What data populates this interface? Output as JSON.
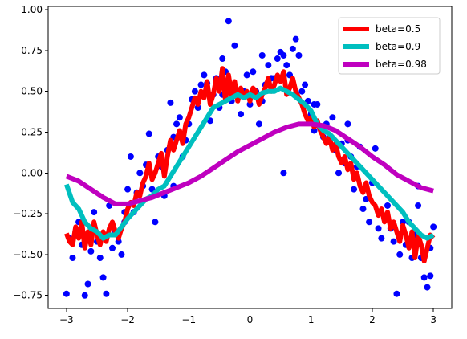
{
  "chart_data": {
    "type": "line",
    "title": "",
    "xlabel": "",
    "ylabel": "",
    "xlim": [
      -3.3,
      3.3
    ],
    "ylim": [
      -0.83,
      1.02
    ],
    "grid": false,
    "legend_position": "top-right",
    "x_ticks": [
      -3,
      -2,
      -1,
      0,
      1,
      2,
      3
    ],
    "y_ticks": [
      -0.75,
      -0.5,
      -0.25,
      0.0,
      0.25,
      0.5,
      0.75,
      1.0
    ],
    "x_tick_labels": [
      "−3",
      "−2",
      "−1",
      "0",
      "1",
      "2",
      "3"
    ],
    "y_tick_labels": [
      "−0.75",
      "−0.50",
      "−0.25",
      "0.00",
      "0.25",
      "0.50",
      "0.75",
      "1.00"
    ],
    "scatter": {
      "color": "#0000ff",
      "points": [
        [
          -3.0,
          -0.74
        ],
        [
          -2.95,
          -0.4
        ],
        [
          -2.9,
          -0.52
        ],
        [
          -2.85,
          -0.36
        ],
        [
          -2.8,
          -0.3
        ],
        [
          -2.75,
          -0.44
        ],
        [
          -2.7,
          -0.75
        ],
        [
          -2.65,
          -0.68
        ],
        [
          -2.6,
          -0.48
        ],
        [
          -2.55,
          -0.24
        ],
        [
          -2.5,
          -0.42
        ],
        [
          -2.45,
          -0.52
        ],
        [
          -2.4,
          -0.64
        ],
        [
          -2.35,
          -0.74
        ],
        [
          -2.3,
          -0.2
        ],
        [
          -2.25,
          -0.46
        ],
        [
          -2.2,
          -0.36
        ],
        [
          -2.15,
          -0.42
        ],
        [
          -2.1,
          -0.5
        ],
        [
          -2.05,
          -0.3
        ],
        [
          -2.0,
          -0.1
        ],
        [
          -1.95,
          0.1
        ],
        [
          -1.9,
          -0.24
        ],
        [
          -1.85,
          -0.12
        ],
        [
          -1.8,
          0.0
        ],
        [
          -1.75,
          -0.08
        ],
        [
          -1.7,
          0.05
        ],
        [
          -1.65,
          0.24
        ],
        [
          -1.6,
          -0.1
        ],
        [
          -1.55,
          -0.3
        ],
        [
          -1.5,
          0.1
        ],
        [
          -1.45,
          0.04
        ],
        [
          -1.4,
          -0.14
        ],
        [
          -1.35,
          0.14
        ],
        [
          -1.3,
          0.43
        ],
        [
          -1.25,
          -0.08
        ],
        [
          -1.2,
          0.3
        ],
        [
          -1.15,
          0.34
        ],
        [
          -1.1,
          0.1
        ],
        [
          -1.05,
          0.2
        ],
        [
          -1.0,
          0.3
        ],
        [
          -0.95,
          0.45
        ],
        [
          -0.9,
          0.5
        ],
        [
          -0.85,
          0.4
        ],
        [
          -0.8,
          0.54
        ],
        [
          -0.75,
          0.6
        ],
        [
          -0.7,
          0.55
        ],
        [
          -0.65,
          0.32
        ],
        [
          -0.6,
          0.48
        ],
        [
          -0.55,
          0.58
        ],
        [
          -0.5,
          0.4
        ],
        [
          -0.45,
          0.7
        ],
        [
          -0.4,
          0.62
        ],
        [
          -0.35,
          0.93
        ],
        [
          -0.3,
          0.44
        ],
        [
          -0.25,
          0.78
        ],
        [
          -0.2,
          0.5
        ],
        [
          -0.15,
          0.36
        ],
        [
          -0.1,
          0.5
        ],
        [
          -0.05,
          0.6
        ],
        [
          0.0,
          0.42
        ],
        [
          0.05,
          0.62
        ],
        [
          0.1,
          0.5
        ],
        [
          0.15,
          0.3
        ],
        [
          0.2,
          0.44
        ],
        [
          0.25,
          0.54
        ],
        [
          0.3,
          0.66
        ],
        [
          0.35,
          0.58
        ],
        [
          0.4,
          0.58
        ],
        [
          0.45,
          0.7
        ],
        [
          0.5,
          0.74
        ],
        [
          0.55,
          0.72
        ],
        [
          0.6,
          0.66
        ],
        [
          0.65,
          0.6
        ],
        [
          0.7,
          0.76
        ],
        [
          0.75,
          0.82
        ],
        [
          0.8,
          0.72
        ],
        [
          0.85,
          0.5
        ],
        [
          0.9,
          0.54
        ],
        [
          0.95,
          0.44
        ],
        [
          1.0,
          0.36
        ],
        [
          1.05,
          0.26
        ],
        [
          1.1,
          0.42
        ],
        [
          1.15,
          0.28
        ],
        [
          1.2,
          0.22
        ],
        [
          1.25,
          0.3
        ],
        [
          1.3,
          0.2
        ],
        [
          1.35,
          0.34
        ],
        [
          1.4,
          0.14
        ],
        [
          1.45,
          0.0
        ],
        [
          1.5,
          0.18
        ],
        [
          1.55,
          0.06
        ],
        [
          1.6,
          0.2
        ],
        [
          1.65,
          0.1
        ],
        [
          1.7,
          -0.1
        ],
        [
          1.75,
          0.04
        ],
        [
          1.8,
          0.16
        ],
        [
          1.85,
          -0.22
        ],
        [
          1.9,
          -0.16
        ],
        [
          1.95,
          -0.3
        ],
        [
          2.0,
          -0.06
        ],
        [
          2.05,
          0.15
        ],
        [
          2.1,
          -0.34
        ],
        [
          2.15,
          -0.4
        ],
        [
          2.2,
          -0.28
        ],
        [
          2.25,
          -0.2
        ],
        [
          2.3,
          -0.34
        ],
        [
          2.35,
          -0.42
        ],
        [
          2.4,
          -0.74
        ],
        [
          2.45,
          -0.5
        ],
        [
          2.5,
          -0.3
        ],
        [
          2.55,
          -0.44
        ],
        [
          2.6,
          -0.3
        ],
        [
          2.65,
          -0.52
        ],
        [
          2.7,
          -0.38
        ],
        [
          2.75,
          -0.2
        ],
        [
          2.8,
          -0.52
        ],
        [
          2.85,
          -0.64
        ],
        [
          2.9,
          -0.7
        ],
        [
          2.95,
          -0.46
        ],
        [
          3.0,
          -0.33
        ],
        [
          0.55,
          -0.0
        ],
        [
          0.2,
          0.72
        ],
        [
          -0.45,
          0.48
        ],
        [
          1.05,
          0.42
        ],
        [
          -2.05,
          -0.24
        ],
        [
          2.75,
          -0.08
        ],
        [
          2.95,
          -0.63
        ],
        [
          -1.25,
          0.22
        ],
        [
          1.6,
          0.3
        ]
      ]
    },
    "series": [
      {
        "name": "beta=0.5",
        "color": "#ff0000",
        "line_width": 6,
        "x": [
          -3.0,
          -2.95,
          -2.9,
          -2.85,
          -2.8,
          -2.75,
          -2.7,
          -2.65,
          -2.6,
          -2.55,
          -2.5,
          -2.45,
          -2.4,
          -2.35,
          -2.3,
          -2.25,
          -2.2,
          -2.15,
          -2.1,
          -2.05,
          -2.0,
          -1.95,
          -1.9,
          -1.85,
          -1.8,
          -1.75,
          -1.7,
          -1.65,
          -1.6,
          -1.55,
          -1.5,
          -1.45,
          -1.4,
          -1.35,
          -1.3,
          -1.25,
          -1.2,
          -1.15,
          -1.1,
          -1.05,
          -1.0,
          -0.95,
          -0.9,
          -0.85,
          -0.8,
          -0.75,
          -0.7,
          -0.65,
          -0.6,
          -0.55,
          -0.5,
          -0.45,
          -0.4,
          -0.35,
          -0.3,
          -0.25,
          -0.2,
          -0.15,
          -0.1,
          -0.05,
          0.0,
          0.05,
          0.1,
          0.15,
          0.2,
          0.25,
          0.3,
          0.35,
          0.4,
          0.45,
          0.5,
          0.55,
          0.6,
          0.65,
          0.7,
          0.75,
          0.8,
          0.85,
          0.9,
          0.95,
          1.0,
          1.05,
          1.1,
          1.15,
          1.2,
          1.25,
          1.3,
          1.35,
          1.4,
          1.45,
          1.5,
          1.55,
          1.6,
          1.65,
          1.7,
          1.75,
          1.8,
          1.85,
          1.9,
          1.95,
          2.0,
          2.05,
          2.1,
          2.15,
          2.2,
          2.25,
          2.3,
          2.35,
          2.4,
          2.45,
          2.5,
          2.55,
          2.6,
          2.65,
          2.7,
          2.75,
          2.8,
          2.85,
          2.9,
          2.95,
          3.0
        ],
        "y": [
          -0.37,
          -0.42,
          -0.44,
          -0.33,
          -0.4,
          -0.3,
          -0.46,
          -0.36,
          -0.44,
          -0.3,
          -0.38,
          -0.44,
          -0.36,
          -0.42,
          -0.34,
          -0.3,
          -0.36,
          -0.4,
          -0.34,
          -0.3,
          -0.22,
          -0.18,
          -0.2,
          -0.12,
          -0.14,
          -0.06,
          -0.02,
          0.06,
          -0.04,
          0.0,
          0.06,
          0.12,
          -0.02,
          0.1,
          0.2,
          0.14,
          0.2,
          0.26,
          0.18,
          0.3,
          0.34,
          0.4,
          0.46,
          0.42,
          0.5,
          0.46,
          0.56,
          0.42,
          0.48,
          0.58,
          0.5,
          0.64,
          0.44,
          0.6,
          0.48,
          0.56,
          0.44,
          0.52,
          0.46,
          0.5,
          0.44,
          0.52,
          0.5,
          0.42,
          0.48,
          0.52,
          0.58,
          0.5,
          0.54,
          0.6,
          0.56,
          0.62,
          0.48,
          0.52,
          0.58,
          0.5,
          0.46,
          0.42,
          0.36,
          0.32,
          0.34,
          0.28,
          0.32,
          0.26,
          0.22,
          0.18,
          0.22,
          0.14,
          0.18,
          0.1,
          0.06,
          0.1,
          0.02,
          0.06,
          -0.04,
          0.0,
          -0.08,
          -0.12,
          -0.06,
          -0.14,
          -0.18,
          -0.2,
          -0.26,
          -0.22,
          -0.3,
          -0.24,
          -0.34,
          -0.3,
          -0.36,
          -0.42,
          -0.32,
          -0.38,
          -0.46,
          -0.36,
          -0.52,
          -0.38,
          -0.44,
          -0.54,
          -0.46,
          -0.38,
          -0.4
        ]
      },
      {
        "name": "beta=0.9",
        "color": "#00bfbf",
        "line_width": 6,
        "x": [
          -3.0,
          -2.9,
          -2.8,
          -2.7,
          -2.6,
          -2.5,
          -2.4,
          -2.3,
          -2.2,
          -2.1,
          -2.0,
          -1.9,
          -1.8,
          -1.7,
          -1.6,
          -1.5,
          -1.4,
          -1.3,
          -1.2,
          -1.1,
          -1.0,
          -0.9,
          -0.8,
          -0.7,
          -0.6,
          -0.5,
          -0.4,
          -0.3,
          -0.2,
          -0.1,
          0.0,
          0.1,
          0.2,
          0.3,
          0.4,
          0.5,
          0.6,
          0.7,
          0.8,
          0.9,
          1.0,
          1.1,
          1.2,
          1.3,
          1.4,
          1.5,
          1.6,
          1.7,
          1.8,
          1.9,
          2.0,
          2.1,
          2.2,
          2.3,
          2.4,
          2.5,
          2.6,
          2.7,
          2.8,
          2.9,
          3.0
        ],
        "y": [
          -0.07,
          -0.18,
          -0.22,
          -0.3,
          -0.34,
          -0.36,
          -0.4,
          -0.38,
          -0.38,
          -0.33,
          -0.28,
          -0.24,
          -0.2,
          -0.16,
          -0.14,
          -0.1,
          -0.08,
          -0.02,
          0.04,
          0.1,
          0.16,
          0.22,
          0.28,
          0.34,
          0.4,
          0.42,
          0.44,
          0.46,
          0.48,
          0.46,
          0.48,
          0.46,
          0.49,
          0.5,
          0.5,
          0.52,
          0.5,
          0.48,
          0.45,
          0.42,
          0.38,
          0.3,
          0.26,
          0.24,
          0.2,
          0.16,
          0.12,
          0.08,
          0.04,
          0.0,
          -0.04,
          -0.08,
          -0.12,
          -0.16,
          -0.2,
          -0.24,
          -0.3,
          -0.34,
          -0.38,
          -0.4,
          -0.38
        ]
      },
      {
        "name": "beta=0.98",
        "color": "#bf00bf",
        "line_width": 6,
        "x": [
          -3.0,
          -2.8,
          -2.6,
          -2.4,
          -2.2,
          -2.0,
          -1.8,
          -1.6,
          -1.4,
          -1.2,
          -1.0,
          -0.8,
          -0.6,
          -0.4,
          -0.2,
          0.0,
          0.2,
          0.4,
          0.6,
          0.8,
          1.0,
          1.2,
          1.4,
          1.6,
          1.8,
          2.0,
          2.2,
          2.4,
          2.6,
          2.8,
          3.0
        ],
        "y": [
          -0.02,
          -0.05,
          -0.1,
          -0.15,
          -0.19,
          -0.19,
          -0.17,
          -0.15,
          -0.12,
          -0.09,
          -0.06,
          -0.02,
          0.03,
          0.08,
          0.13,
          0.17,
          0.21,
          0.25,
          0.28,
          0.3,
          0.3,
          0.29,
          0.26,
          0.21,
          0.16,
          0.1,
          0.05,
          -0.01,
          -0.05,
          -0.09,
          -0.11
        ]
      }
    ]
  }
}
